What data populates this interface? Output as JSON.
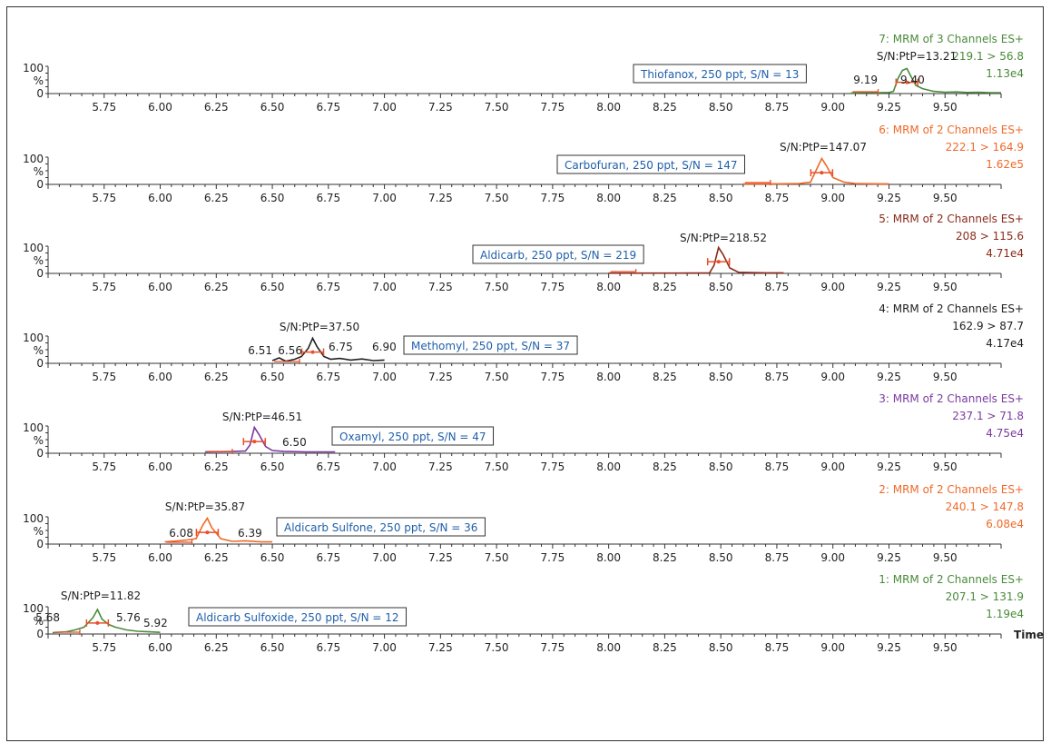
{
  "chart_data": {
    "type": "line",
    "x_axis": {
      "range": [
        5.5,
        9.75
      ],
      "ticks": [
        "5.75",
        "6.00",
        "6.25",
        "6.50",
        "6.75",
        "7.00",
        "7.25",
        "7.50",
        "7.75",
        "8.00",
        "8.25",
        "8.50",
        "8.75",
        "9.00",
        "9.25",
        "9.50"
      ],
      "label": "Time"
    },
    "y_axis": {
      "ticks": [
        "100",
        "%",
        "0"
      ],
      "range": [
        0,
        100
      ]
    },
    "panels": [
      {
        "id": "7",
        "color": "#4a8a3a",
        "header": "7: MRM of 3 Channels ES+",
        "transition": "219.1 > 56.8",
        "intensity": "1.13e4",
        "sn_text": "S/N:PtP=13.21",
        "label_box": "Thiofanox, 250 ppt, S/N = 13",
        "peak_labels": [
          "9.19",
          "9.40"
        ],
        "points": [
          [
            9.08,
            2
          ],
          [
            9.15,
            4
          ],
          [
            9.2,
            3
          ],
          [
            9.25,
            4
          ],
          [
            9.27,
            8
          ],
          [
            9.29,
            55
          ],
          [
            9.31,
            85
          ],
          [
            9.33,
            92
          ],
          [
            9.35,
            60
          ],
          [
            9.37,
            30
          ],
          [
            9.4,
            18
          ],
          [
            9.45,
            8
          ],
          [
            9.5,
            5
          ],
          [
            9.55,
            6
          ],
          [
            9.6,
            4
          ],
          [
            9.65,
            5
          ],
          [
            9.7,
            3
          ],
          [
            9.75,
            3
          ]
        ]
      },
      {
        "id": "6",
        "color": "#ef6a2a",
        "header": "6: MRM of 2 Channels ES+",
        "transition": "222.1 > 164.9",
        "intensity": "1.62e5",
        "sn_text": "S/N:PtP=147.07",
        "label_box": "Carbofuran, 250 ppt, S/N = 147",
        "peak_labels": [],
        "points": [
          [
            8.6,
            2
          ],
          [
            8.75,
            2
          ],
          [
            8.85,
            3
          ],
          [
            8.9,
            8
          ],
          [
            8.93,
            60
          ],
          [
            8.95,
            95
          ],
          [
            8.97,
            70
          ],
          [
            9.0,
            25
          ],
          [
            9.05,
            8
          ],
          [
            9.1,
            3
          ],
          [
            9.2,
            2
          ],
          [
            9.25,
            2
          ]
        ]
      },
      {
        "id": "5",
        "color": "#8b2a1a",
        "header": "5: MRM of 2 Channels ES+",
        "transition": "208 > 115.6",
        "intensity": "4.71e4",
        "sn_text": "S/N:PtP=218.52",
        "label_box": "Aldicarb, 250 ppt, S/N = 219",
        "peak_labels": [],
        "points": [
          [
            8.0,
            1
          ],
          [
            8.3,
            1
          ],
          [
            8.45,
            2
          ],
          [
            8.47,
            30
          ],
          [
            8.49,
            95
          ],
          [
            8.51,
            70
          ],
          [
            8.54,
            20
          ],
          [
            8.58,
            4
          ],
          [
            8.7,
            2
          ],
          [
            8.78,
            2
          ]
        ]
      },
      {
        "id": "4",
        "color": "#222222",
        "header": "4: MRM of 2 Channels ES+",
        "transition": "162.9 > 87.7",
        "intensity": "4.17e4",
        "sn_text": "S/N:PtP=37.50",
        "label_box": "Methomyl, 250 ppt, S/N = 37",
        "peak_labels": [
          "6.51",
          "6.56",
          "6.75",
          "6.90"
        ],
        "points": [
          [
            6.5,
            10
          ],
          [
            6.53,
            20
          ],
          [
            6.56,
            8
          ],
          [
            6.6,
            15
          ],
          [
            6.63,
            25
          ],
          [
            6.66,
            55
          ],
          [
            6.68,
            92
          ],
          [
            6.7,
            60
          ],
          [
            6.73,
            25
          ],
          [
            6.76,
            15
          ],
          [
            6.8,
            18
          ],
          [
            6.85,
            12
          ],
          [
            6.9,
            16
          ],
          [
            6.95,
            10
          ],
          [
            7.0,
            12
          ]
        ]
      },
      {
        "id": "3",
        "color": "#7a3aa0",
        "header": "3: MRM of 2 Channels ES+",
        "transition": "237.1 > 71.8",
        "intensity": "4.75e4",
        "sn_text": "S/N:PtP=46.51",
        "label_box": "Oxamyl, 250 ppt, S/N = 47",
        "peak_labels": [
          "6.50"
        ],
        "points": [
          [
            6.2,
            5
          ],
          [
            6.3,
            6
          ],
          [
            6.38,
            8
          ],
          [
            6.4,
            30
          ],
          [
            6.42,
            95
          ],
          [
            6.44,
            70
          ],
          [
            6.47,
            25
          ],
          [
            6.5,
            10
          ],
          [
            6.55,
            7
          ],
          [
            6.65,
            5
          ],
          [
            6.78,
            5
          ]
        ]
      },
      {
        "id": "2",
        "color": "#ef6a2a",
        "header": "2: MRM of 2 Channels ES+",
        "transition": "240.1 > 147.8",
        "intensity": "6.08e4",
        "sn_text": "S/N:PtP=35.87",
        "label_box": "Aldicarb Sulfone, 250 ppt, S/N = 36",
        "peak_labels": [
          "6.08",
          "6.39"
        ],
        "points": [
          [
            6.02,
            8
          ],
          [
            6.08,
            12
          ],
          [
            6.12,
            15
          ],
          [
            6.16,
            20
          ],
          [
            6.19,
            70
          ],
          [
            6.21,
            95
          ],
          [
            6.23,
            60
          ],
          [
            6.27,
            20
          ],
          [
            6.32,
            10
          ],
          [
            6.38,
            12
          ],
          [
            6.45,
            8
          ],
          [
            6.5,
            8
          ]
        ]
      },
      {
        "id": "1",
        "color": "#4a8a3a",
        "header": "1: MRM of 2 Channels ES+",
        "transition": "207.1 > 131.9",
        "intensity": "1.19e4",
        "sn_text": "S/N:PtP=11.82",
        "label_box": "Aldicarb Sulfoxide, 250 ppt, S/N = 12",
        "peak_labels": [
          "5.68",
          "5.76",
          "5.92"
        ],
        "points": [
          [
            5.52,
            5
          ],
          [
            5.58,
            8
          ],
          [
            5.62,
            15
          ],
          [
            5.66,
            25
          ],
          [
            5.7,
            60
          ],
          [
            5.72,
            90
          ],
          [
            5.74,
            55
          ],
          [
            5.77,
            35
          ],
          [
            5.8,
            25
          ],
          [
            5.85,
            15
          ],
          [
            5.9,
            10
          ],
          [
            5.95,
            8
          ],
          [
            6.0,
            6
          ]
        ]
      }
    ]
  }
}
